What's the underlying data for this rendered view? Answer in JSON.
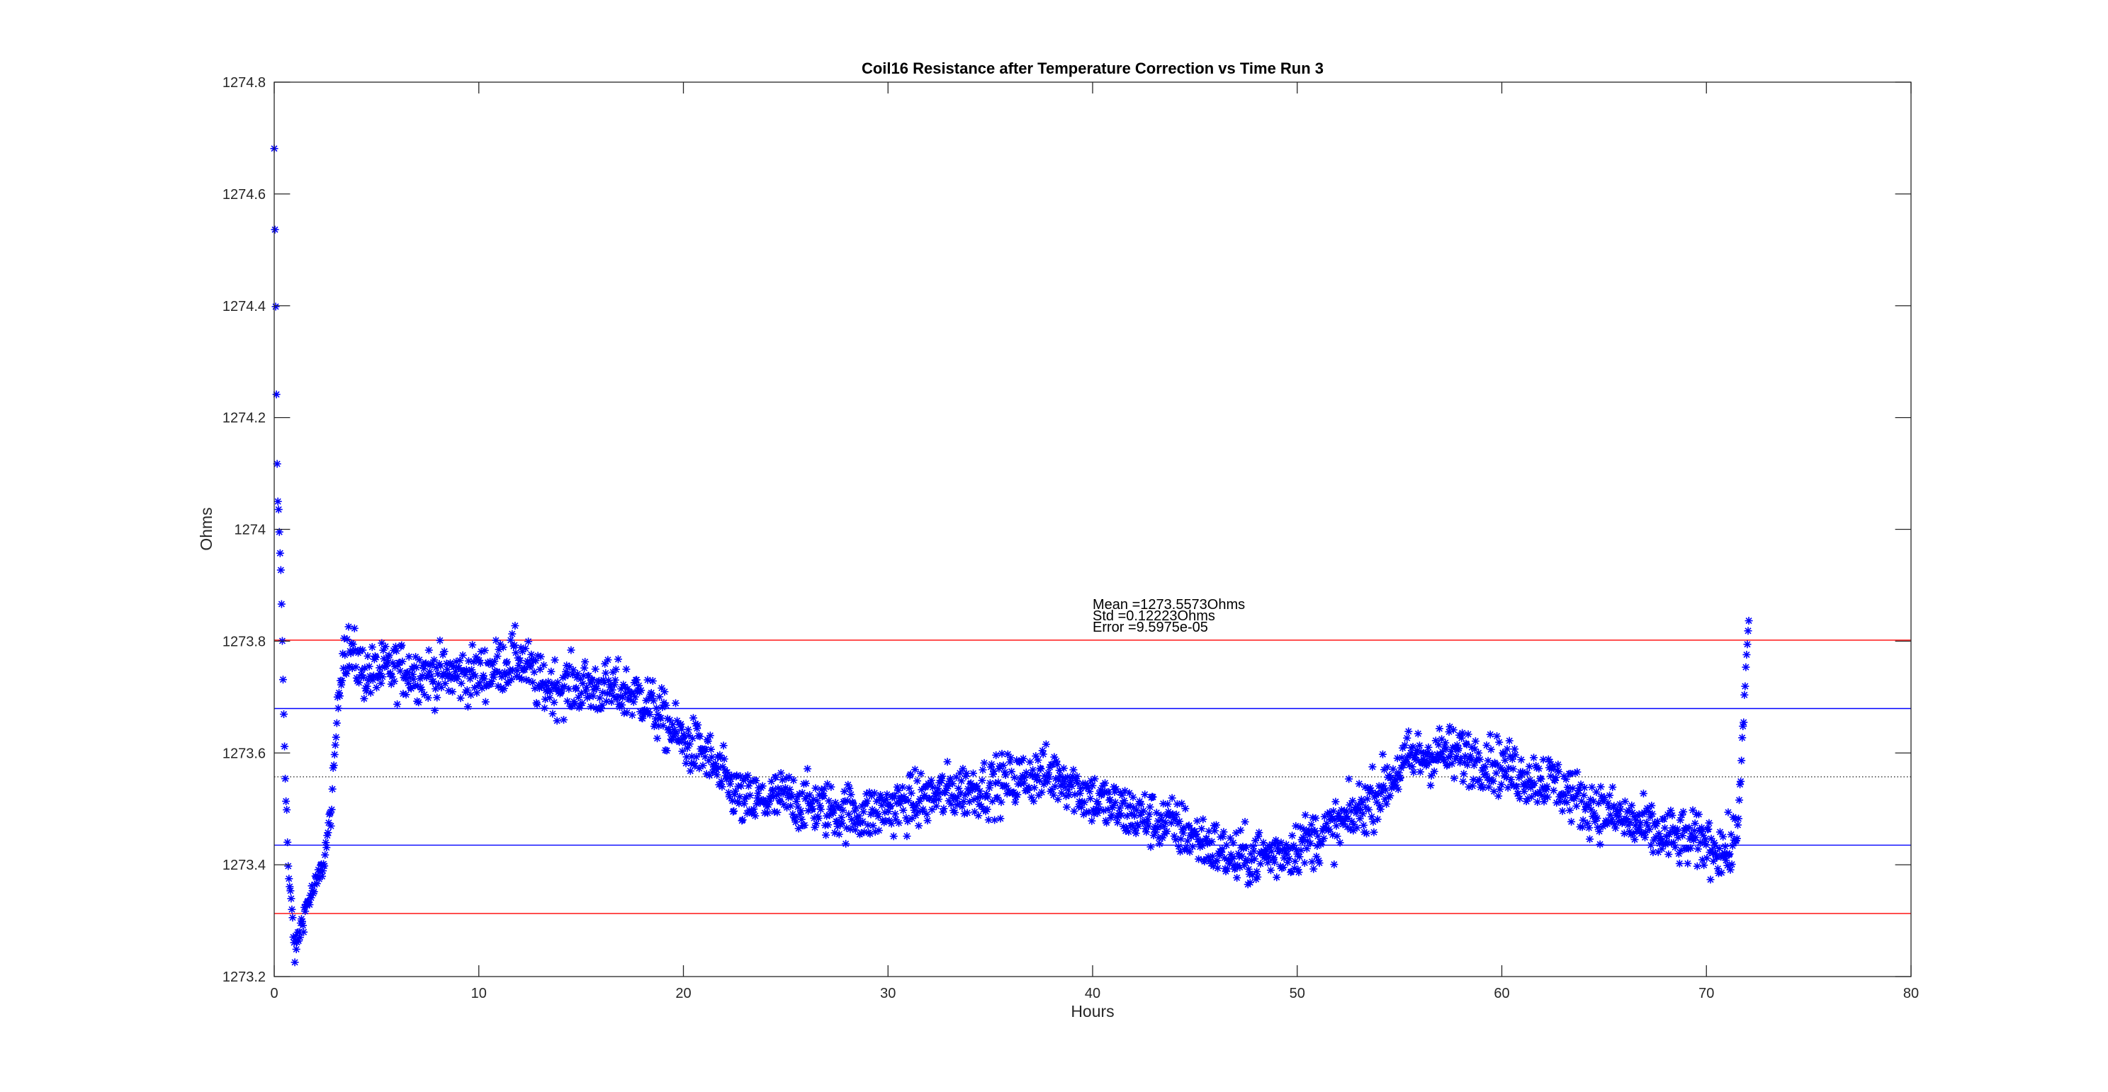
{
  "chart_data": {
    "type": "scatter",
    "title": "Coil16 Resistance after Temperature Correction vs Time Run 3",
    "xlabel": "Hours",
    "ylabel": "Ohms",
    "xlim": [
      0,
      80
    ],
    "ylim": [
      1273.2,
      1274.8
    ],
    "xticks": [
      0,
      10,
      20,
      30,
      40,
      50,
      60,
      70,
      80
    ],
    "xtick_labels": [
      "0",
      "10",
      "20",
      "30",
      "40",
      "50",
      "60",
      "70",
      "80"
    ],
    "yticks": [
      1273.2,
      1273.4,
      1273.6,
      1273.8,
      1274,
      1274.2,
      1274.4,
      1274.6,
      1274.8
    ],
    "ytick_labels": [
      "1273.2",
      "1273.4",
      "1273.6",
      "1273.8",
      "1274",
      "1274.2",
      "1274.4",
      "1274.6",
      "1274.8"
    ],
    "grid": false,
    "marker": "*",
    "marker_color": "#0000ff",
    "annotations": [
      "Mean =1273.5573Ohms",
      "Std =0.12223Ohms",
      "Error =9.5975e-05"
    ],
    "annotation_x": 40,
    "annotation_y": 1273.85,
    "reference_lines": [
      {
        "y": 1273.5573,
        "color": "#000000",
        "style": "dotted"
      },
      {
        "y": 1273.6795,
        "color": "#0000ff",
        "style": "solid"
      },
      {
        "y": 1273.4351,
        "color": "#0000ff",
        "style": "solid"
      },
      {
        "y": 1273.8018,
        "color": "#ff0000",
        "style": "solid"
      },
      {
        "y": 1273.3128,
        "color": "#ff0000",
        "style": "solid"
      }
    ],
    "trend": {
      "x": [
        0,
        0.15,
        0.3,
        0.5,
        0.7,
        0.9,
        1.0,
        1.3,
        1.6,
        2.0,
        2.4,
        2.8,
        3.1,
        3.4,
        3.7,
        4.5,
        6,
        8,
        10,
        12,
        13,
        15,
        17,
        18,
        19,
        20,
        21,
        22,
        23,
        25,
        27,
        29,
        31,
        33,
        35,
        37,
        38.5,
        39.5,
        40.5,
        42,
        44,
        45.5,
        47,
        49,
        51,
        52.5,
        54,
        55.5,
        57,
        59,
        61,
        62.5,
        64,
        66,
        68,
        70,
        71,
        71.5,
        71.8,
        72.1
      ],
      "y": [
        1274.67,
        1274.08,
        1273.96,
        1273.62,
        1273.38,
        1273.3,
        1273.24,
        1273.29,
        1273.33,
        1273.36,
        1273.4,
        1273.5,
        1273.68,
        1273.79,
        1273.78,
        1273.74,
        1273.75,
        1273.74,
        1273.74,
        1273.77,
        1273.72,
        1273.72,
        1273.71,
        1273.7,
        1273.66,
        1273.62,
        1273.6,
        1273.55,
        1273.51,
        1273.52,
        1273.5,
        1273.49,
        1273.51,
        1273.53,
        1273.54,
        1273.56,
        1273.56,
        1273.53,
        1273.51,
        1273.49,
        1273.47,
        1273.44,
        1273.41,
        1273.42,
        1273.45,
        1273.48,
        1273.53,
        1273.59,
        1273.6,
        1273.59,
        1273.56,
        1273.55,
        1273.51,
        1273.48,
        1273.45,
        1273.44,
        1273.42,
        1273.45,
        1273.65,
        1273.86
      ],
      "jitter": 0.045
    }
  }
}
